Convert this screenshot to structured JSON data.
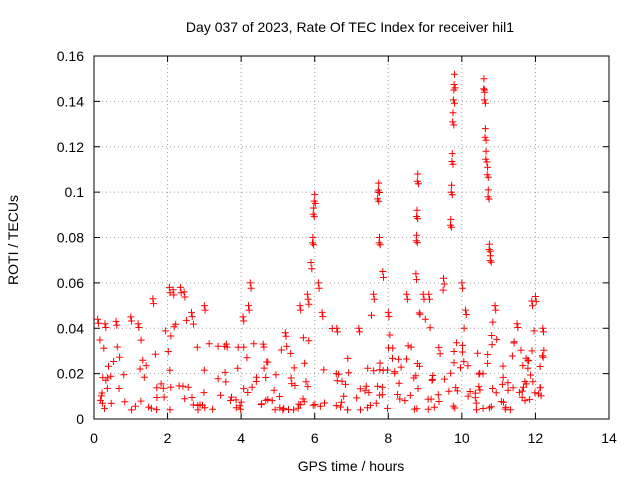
{
  "chart_data": {
    "type": "scatter",
    "title": "Day 037 of 2023, Rate Of TEC Index for receiver hil1",
    "xlabel": "GPS time / hours",
    "ylabel": "ROTI / TECUs",
    "xlim": [
      0,
      14
    ],
    "ylim": [
      0,
      0.16
    ],
    "xticks": [
      "0",
      "2",
      "4",
      "6",
      "8",
      "10",
      "12",
      "14"
    ],
    "yticks": [
      "0",
      "0.02",
      "0.04",
      "0.06",
      "0.08",
      "0.1",
      "0.12",
      "0.14",
      "0.16"
    ],
    "grid": true,
    "marker": "+",
    "color": "#ff0000",
    "series": [
      {
        "name": "hil1",
        "note": "dense band of ROTI values 0.003-0.045 from 0 to 12.25 h, with spikes",
        "band": {
          "x_start": 0.0,
          "x_end": 12.25,
          "base_low": 0.004,
          "base_high": 0.03
        },
        "peaks": [
          {
            "x": 0.1,
            "y": 0.044
          },
          {
            "x": 0.3,
            "y": 0.042
          },
          {
            "x": 0.6,
            "y": 0.043
          },
          {
            "x": 1.0,
            "y": 0.045
          },
          {
            "x": 1.2,
            "y": 0.042
          },
          {
            "x": 1.6,
            "y": 0.053
          },
          {
            "x": 2.05,
            "y": 0.058
          },
          {
            "x": 2.15,
            "y": 0.057
          },
          {
            "x": 2.35,
            "y": 0.058
          },
          {
            "x": 2.45,
            "y": 0.056
          },
          {
            "x": 2.65,
            "y": 0.047
          },
          {
            "x": 3.0,
            "y": 0.05
          },
          {
            "x": 3.6,
            "y": 0.033
          },
          {
            "x": 4.05,
            "y": 0.045
          },
          {
            "x": 4.2,
            "y": 0.05
          },
          {
            "x": 4.25,
            "y": 0.06
          },
          {
            "x": 4.6,
            "y": 0.033
          },
          {
            "x": 5.2,
            "y": 0.038
          },
          {
            "x": 5.6,
            "y": 0.05
          },
          {
            "x": 5.8,
            "y": 0.055
          },
          {
            "x": 5.9,
            "y": 0.069
          },
          {
            "x": 5.95,
            "y": 0.08
          },
          {
            "x": 5.97,
            "y": 0.093
          },
          {
            "x": 6.0,
            "y": 0.099
          },
          {
            "x": 6.1,
            "y": 0.06
          },
          {
            "x": 6.2,
            "y": 0.047
          },
          {
            "x": 6.6,
            "y": 0.04
          },
          {
            "x": 7.2,
            "y": 0.04
          },
          {
            "x": 7.6,
            "y": 0.055
          },
          {
            "x": 7.72,
            "y": 0.1
          },
          {
            "x": 7.74,
            "y": 0.104
          },
          {
            "x": 7.76,
            "y": 0.08
          },
          {
            "x": 7.85,
            "y": 0.065
          },
          {
            "x": 8.0,
            "y": 0.047
          },
          {
            "x": 8.5,
            "y": 0.055
          },
          {
            "x": 8.75,
            "y": 0.064
          },
          {
            "x": 8.77,
            "y": 0.081
          },
          {
            "x": 8.78,
            "y": 0.092
          },
          {
            "x": 8.8,
            "y": 0.108
          },
          {
            "x": 8.95,
            "y": 0.055
          },
          {
            "x": 9.1,
            "y": 0.055
          },
          {
            "x": 9.5,
            "y": 0.062
          },
          {
            "x": 9.7,
            "y": 0.088
          },
          {
            "x": 9.72,
            "y": 0.103
          },
          {
            "x": 9.74,
            "y": 0.117
          },
          {
            "x": 9.76,
            "y": 0.135
          },
          {
            "x": 9.78,
            "y": 0.145
          },
          {
            "x": 9.8,
            "y": 0.152
          },
          {
            "x": 10.0,
            "y": 0.06
          },
          {
            "x": 10.1,
            "y": 0.048
          },
          {
            "x": 10.6,
            "y": 0.15
          },
          {
            "x": 10.62,
            "y": 0.145
          },
          {
            "x": 10.64,
            "y": 0.128
          },
          {
            "x": 10.66,
            "y": 0.118
          },
          {
            "x": 10.7,
            "y": 0.111
          },
          {
            "x": 10.72,
            "y": 0.101
          },
          {
            "x": 10.75,
            "y": 0.077
          },
          {
            "x": 10.78,
            "y": 0.072
          },
          {
            "x": 10.9,
            "y": 0.05
          },
          {
            "x": 11.5,
            "y": 0.042
          },
          {
            "x": 11.9,
            "y": 0.052
          },
          {
            "x": 12.0,
            "y": 0.054
          },
          {
            "x": 12.2,
            "y": 0.04
          }
        ]
      }
    ]
  }
}
